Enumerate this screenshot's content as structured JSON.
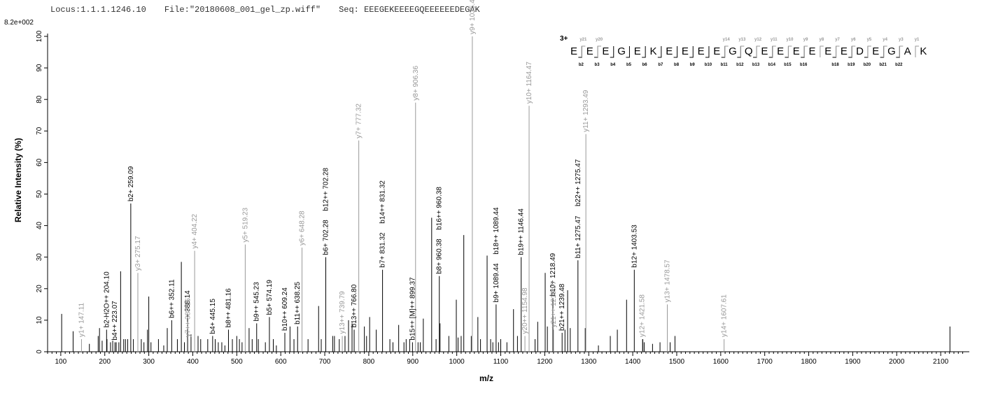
{
  "header": {
    "locus": "Locus:1.1.1.1246.10",
    "file": "File:\"20180608_001_gel_zp.wiff\"",
    "seq": "Seq: EEEGEKEEEEGQEEEEEEDEGAK"
  },
  "chart_data": {
    "type": "bar",
    "max_label": "8.2e+002",
    "xlabel": "m/z",
    "ylabel": "Relative   Intensity (%)",
    "xlim": [
      70,
      2165
    ],
    "ylim": [
      0,
      100
    ],
    "x_ticks": [
      100,
      200,
      300,
      400,
      500,
      600,
      700,
      800,
      900,
      1000,
      1100,
      1200,
      1300,
      1400,
      1500,
      1600,
      1700,
      1800,
      1900,
      2000,
      2100
    ],
    "y_ticks": [
      0,
      10,
      20,
      30,
      40,
      50,
      60,
      70,
      80,
      90,
      100
    ],
    "colors": {
      "b_ion": "#000000",
      "y_ion": "#999999",
      "unlabeled": "#000000"
    },
    "peaks": [
      {
        "mz": 102,
        "int": 12
      },
      {
        "mz": 128,
        "int": 6.5
      },
      {
        "mz": 165,
        "int": 2.5
      },
      {
        "mz": 185,
        "int": 5
      },
      {
        "mz": 188,
        "int": 7.5
      },
      {
        "mz": 194,
        "int": 3.5
      },
      {
        "mz": 205,
        "int": 4
      },
      {
        "mz": 213,
        "int": 3
      },
      {
        "mz": 218,
        "int": 3.5
      },
      {
        "mz": 226,
        "int": 3
      },
      {
        "mz": 232,
        "int": 3
      },
      {
        "mz": 236,
        "int": 25.5
      },
      {
        "mz": 243,
        "int": 4
      },
      {
        "mz": 247,
        "int": 4
      },
      {
        "mz": 252,
        "int": 4
      },
      {
        "mz": 265,
        "int": 4
      },
      {
        "mz": 283,
        "int": 4
      },
      {
        "mz": 289,
        "int": 3
      },
      {
        "mz": 297,
        "int": 7
      },
      {
        "mz": 300,
        "int": 17.5
      },
      {
        "mz": 305,
        "int": 3
      },
      {
        "mz": 322,
        "int": 4
      },
      {
        "mz": 334,
        "int": 2
      },
      {
        "mz": 342,
        "int": 7.5
      },
      {
        "mz": 365,
        "int": 4
      },
      {
        "mz": 374,
        "int": 28.5
      },
      {
        "mz": 381,
        "int": 3
      },
      {
        "mz": 396,
        "int": 5.5
      },
      {
        "mz": 412,
        "int": 5
      },
      {
        "mz": 418,
        "int": 4
      },
      {
        "mz": 434,
        "int": 4
      },
      {
        "mz": 451,
        "int": 4
      },
      {
        "mz": 458,
        "int": 3
      },
      {
        "mz": 466,
        "int": 3
      },
      {
        "mz": 473,
        "int": 2
      },
      {
        "mz": 490,
        "int": 4
      },
      {
        "mz": 500,
        "int": 5
      },
      {
        "mz": 506,
        "int": 4
      },
      {
        "mz": 512,
        "int": 3
      },
      {
        "mz": 528,
        "int": 7.5
      },
      {
        "mz": 535,
        "int": 4
      },
      {
        "mz": 549,
        "int": 4
      },
      {
        "mz": 565,
        "int": 3
      },
      {
        "mz": 583,
        "int": 4
      },
      {
        "mz": 590,
        "int": 2
      },
      {
        "mz": 621,
        "int": 8
      },
      {
        "mz": 630,
        "int": 4
      },
      {
        "mz": 662,
        "int": 4
      },
      {
        "mz": 686,
        "int": 14.5
      },
      {
        "mz": 692,
        "int": 4
      },
      {
        "mz": 718,
        "int": 5
      },
      {
        "mz": 722,
        "int": 5
      },
      {
        "mz": 733,
        "int": 4
      },
      {
        "mz": 746,
        "int": 5
      },
      {
        "mz": 754,
        "int": 10
      },
      {
        "mz": 762,
        "int": 9
      },
      {
        "mz": 790,
        "int": 8
      },
      {
        "mz": 795,
        "int": 5
      },
      {
        "mz": 802,
        "int": 11
      },
      {
        "mz": 817,
        "int": 7
      },
      {
        "mz": 848,
        "int": 4
      },
      {
        "mz": 855,
        "int": 3
      },
      {
        "mz": 868,
        "int": 8.5
      },
      {
        "mz": 880,
        "int": 3
      },
      {
        "mz": 885,
        "int": 4
      },
      {
        "mz": 893,
        "int": 4
      },
      {
        "mz": 912,
        "int": 3
      },
      {
        "mz": 917,
        "int": 3
      },
      {
        "mz": 924,
        "int": 10.5
      },
      {
        "mz": 943,
        "int": 42.5
      },
      {
        "mz": 953,
        "int": 4
      },
      {
        "mz": 962,
        "int": 9
      },
      {
        "mz": 982,
        "int": 5
      },
      {
        "mz": 999,
        "int": 16.5
      },
      {
        "mz": 1003,
        "int": 4.5
      },
      {
        "mz": 1010,
        "int": 5
      },
      {
        "mz": 1016,
        "int": 37
      },
      {
        "mz": 1033,
        "int": 5
      },
      {
        "mz": 1048,
        "int": 11
      },
      {
        "mz": 1054,
        "int": 4
      },
      {
        "mz": 1069,
        "int": 30.5
      },
      {
        "mz": 1077,
        "int": 4
      },
      {
        "mz": 1082,
        "int": 3
      },
      {
        "mz": 1095,
        "int": 3
      },
      {
        "mz": 1100,
        "int": 4
      },
      {
        "mz": 1114,
        "int": 3
      },
      {
        "mz": 1129,
        "int": 13.5
      },
      {
        "mz": 1138,
        "int": 5
      },
      {
        "mz": 1178,
        "int": 4
      },
      {
        "mz": 1184,
        "int": 9.5
      },
      {
        "mz": 1201,
        "int": 25
      },
      {
        "mz": 1206,
        "int": 8
      },
      {
        "mz": 1246,
        "int": 7
      },
      {
        "mz": 1252,
        "int": 19.5
      },
      {
        "mz": 1258,
        "int": 7.5
      },
      {
        "mz": 1292,
        "int": 7.5
      },
      {
        "mz": 1322,
        "int": 2
      },
      {
        "mz": 1349,
        "int": 5
      },
      {
        "mz": 1365,
        "int": 7
      },
      {
        "mz": 1386,
        "int": 16.5
      },
      {
        "mz": 1423,
        "int": 4
      },
      {
        "mz": 1426,
        "int": 3
      },
      {
        "mz": 1445,
        "int": 2.5
      },
      {
        "mz": 1462,
        "int": 3
      },
      {
        "mz": 1485,
        "int": 3
      },
      {
        "mz": 1496,
        "int": 5
      },
      {
        "mz": 2121,
        "int": 8
      }
    ],
    "labeled_peaks": [
      {
        "mz": 147.11,
        "int": 4,
        "label": "y1+ 147.11",
        "ion": "y"
      },
      {
        "mz": 204.1,
        "int": 7,
        "label": "b2-H2O++ 204.10",
        "ion": "b"
      },
      {
        "mz": 223.07,
        "int": 3,
        "label": "b4++ 223.07",
        "ion": "b"
      },
      {
        "mz": 259.09,
        "int": 47,
        "label": "b2+ 259.09",
        "ion": "b"
      },
      {
        "mz": 275.17,
        "int": 25,
        "label": "y3+ 275.17",
        "ion": "y"
      },
      {
        "mz": 352.11,
        "int": 10,
        "label": "b6++ 352.11",
        "ion": "b"
      },
      {
        "mz": 388.14,
        "int": 12,
        "label": "388.14",
        "ion": "b"
      },
      {
        "mz": 389.16,
        "int": 4,
        "label": "y7++ 389.16",
        "ion": "y"
      },
      {
        "mz": 404.22,
        "int": 32,
        "label": "y4+ 404.22",
        "ion": "y"
      },
      {
        "mz": 445.15,
        "int": 5,
        "label": "b4+ 445.15",
        "ion": "b"
      },
      {
        "mz": 481.16,
        "int": 7,
        "label": "b8++ 481.16",
        "ion": "b"
      },
      {
        "mz": 519.23,
        "int": 34,
        "label": "y5+ 519.23",
        "ion": "y"
      },
      {
        "mz": 545.23,
        "int": 9,
        "label": "b9++ 545.23",
        "ion": "b"
      },
      {
        "mz": 574.19,
        "int": 11,
        "label": "b5+ 574.19",
        "ion": "b"
      },
      {
        "mz": 609.24,
        "int": 6,
        "label": "b10++ 609.24",
        "ion": "b"
      },
      {
        "mz": 638.25,
        "int": 8,
        "label": "b11++ 638.25",
        "ion": "b"
      },
      {
        "mz": 648.28,
        "int": 33,
        "label": "y6+ 648.28",
        "ion": "y"
      },
      {
        "mz": 702.28,
        "int": 30,
        "label": "b6+ 702.28",
        "ion": "b"
      },
      {
        "mz": 739.79,
        "int": 5,
        "label": "y13++ 739.79",
        "ion": "y"
      },
      {
        "mz": 766.8,
        "int": 7,
        "label": "b13++ 766.80",
        "ion": "b"
      },
      {
        "mz": 777.32,
        "int": 67,
        "label": "y7+ 777.32",
        "ion": "y"
      },
      {
        "mz": 831.32,
        "int": 26,
        "label": "b7+ 831.32",
        "ion": "b"
      },
      {
        "mz": 899.37,
        "int": 3,
        "label": "b15++ [M]++ 899.37",
        "ion": "b"
      },
      {
        "mz": 906.36,
        "int": 79,
        "label": "y8+ 906.36",
        "ion": "y"
      },
      {
        "mz": 960.38,
        "int": 24,
        "label": "b8+ 960.38",
        "ion": "b"
      },
      {
        "mz": 1035.42,
        "int": 100,
        "label": "y9+ 1035.42",
        "ion": "y"
      },
      {
        "mz": 1089.44,
        "int": 15,
        "label": "b9+ 1089.44",
        "ion": "b"
      },
      {
        "mz": 1146.44,
        "int": 30,
        "label": "b19++ 1146.44",
        "ion": "b"
      },
      {
        "mz": 1154.98,
        "int": 5,
        "label": "y20++ 1154.98",
        "ion": "y"
      },
      {
        "mz": 1164.47,
        "int": 78,
        "label": "y10+ 1164.47",
        "ion": "y"
      },
      {
        "mz": 1218.49,
        "int": 17,
        "label": "b10+ 1218.49",
        "ion": "b"
      },
      {
        "mz": 1219.97,
        "int": 7,
        "label": "y21++ 1219.97",
        "ion": "y"
      },
      {
        "mz": 1239.48,
        "int": 6,
        "label": "b21++ 1239.48",
        "ion": "b"
      },
      {
        "mz": 1275.47,
        "int": 29,
        "label": "b11+ 1275.47",
        "ion": "b"
      },
      {
        "mz": 1293.49,
        "int": 69,
        "label": "y11+ 1293.49",
        "ion": "y"
      },
      {
        "mz": 1403.53,
        "int": 26,
        "label": "b12+ 1403.53",
        "ion": "b"
      },
      {
        "mz": 1421.58,
        "int": 4,
        "label": "y12+ 1421.58",
        "ion": "y"
      },
      {
        "mz": 1478.57,
        "int": 15,
        "label": "y13+ 1478.57",
        "ion": "y"
      },
      {
        "mz": 1607.61,
        "int": 4,
        "label": "y14+ 1607.61",
        "ion": "y"
      }
    ],
    "upper_labels": [
      {
        "mz": 702.28,
        "int": 30,
        "label": "b12++ 702.28"
      },
      {
        "mz": 831.32,
        "int": 26,
        "label": "b14++ 831.32"
      },
      {
        "mz": 960.38,
        "int": 24,
        "label": "b16++ 960.38"
      },
      {
        "mz": 1089.44,
        "int": 15,
        "label": "b18++ 1089.44"
      },
      {
        "mz": 1275.47,
        "int": 29,
        "label": "b22++ 1275.47"
      }
    ],
    "sequence": {
      "charge": "3+",
      "letters": [
        "E",
        "E",
        "E",
        "G",
        "E",
        "K",
        "E",
        "E",
        "E",
        "E",
        "G",
        "Q",
        "E",
        "E",
        "E",
        "E",
        "E",
        "E",
        "D",
        "E",
        "G",
        "A",
        "K"
      ],
      "b_ions": [
        "",
        "b2",
        "b3",
        "b4",
        "b5",
        "b6",
        "b7",
        "b8",
        "b9",
        "b10",
        "b11",
        "b12",
        "b13",
        "b14",
        "b15",
        "b16",
        "",
        "b18",
        "b19",
        "b20",
        "b21",
        "b22",
        ""
      ],
      "y_ions": [
        "",
        "y21",
        "y20",
        "",
        "",
        "",
        "",
        "",
        "",
        "",
        "y14",
        "y13",
        "y12",
        "y11",
        "y10",
        "y9",
        "y8",
        "y7",
        "y6",
        "y5",
        "y4",
        "y3",
        "y1"
      ]
    }
  }
}
